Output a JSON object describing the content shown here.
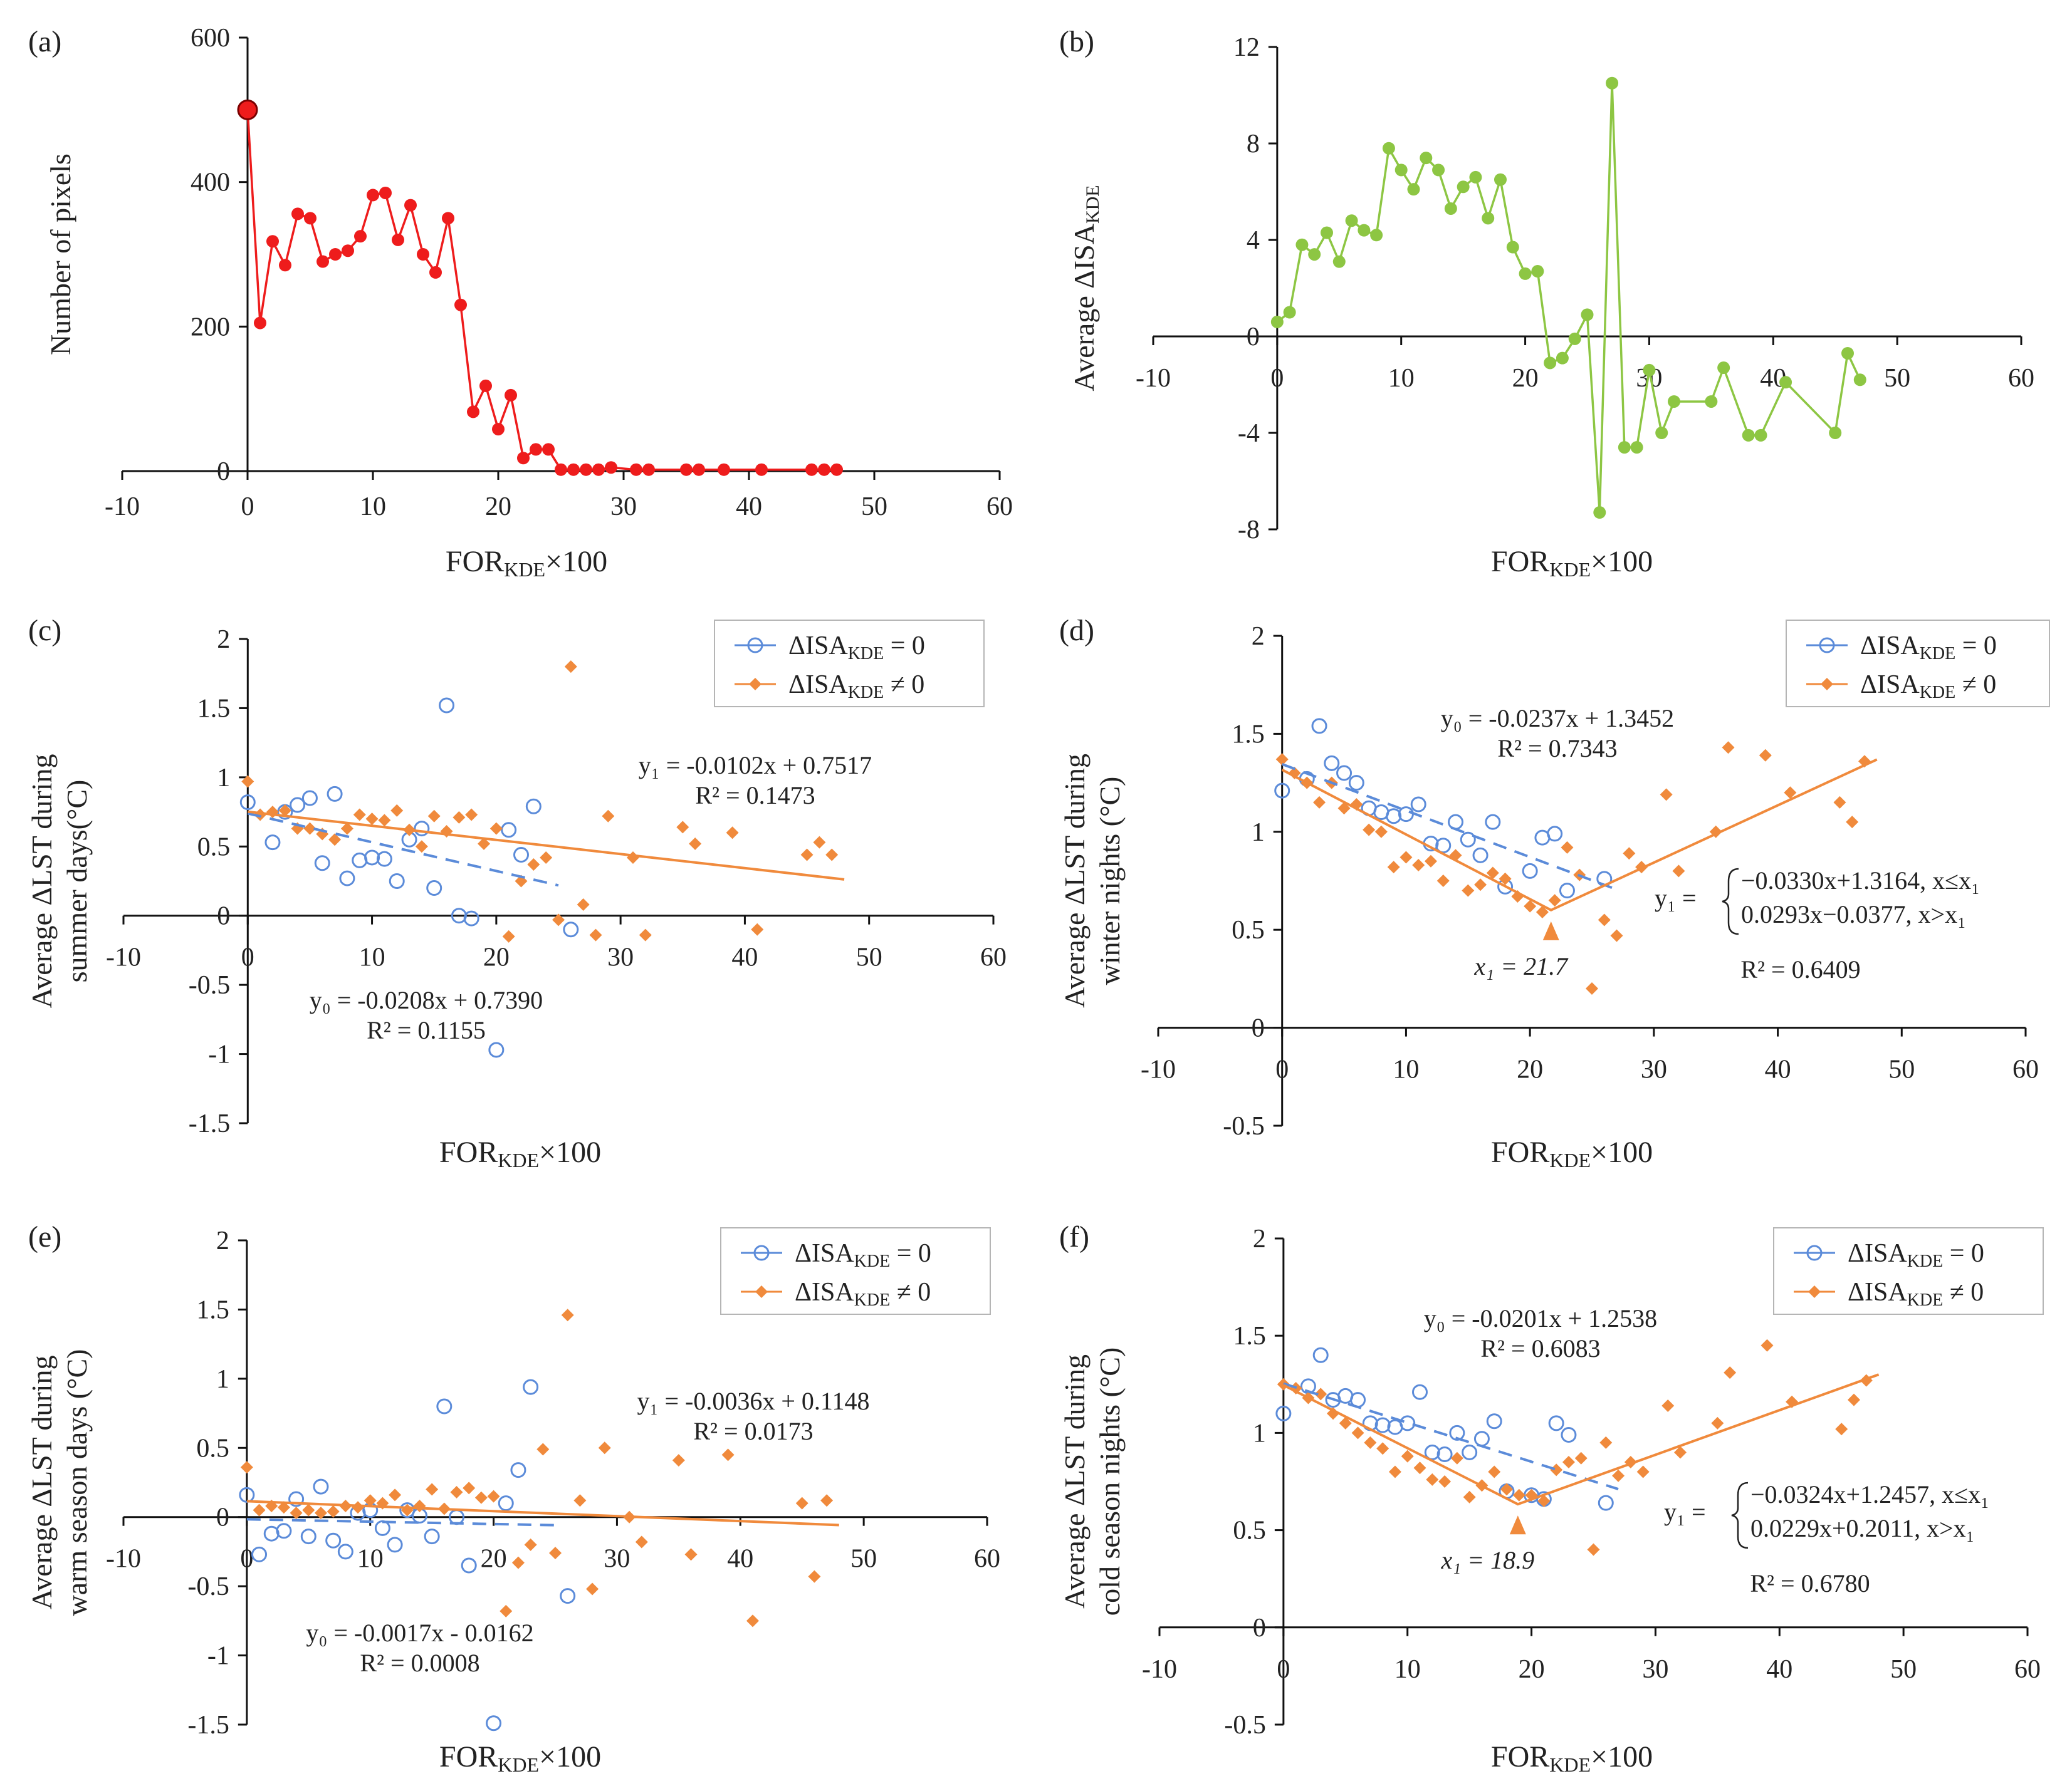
{
  "colors": {
    "panel_a": "#ee1c1c",
    "panel_b": "#8dc643",
    "blue": "#5b8bd9",
    "orange": "#f08a3c",
    "axis": "#111111"
  },
  "chart_data": [
    {
      "id": "a",
      "label": "(a)",
      "type": "line",
      "xlabel": "FORKDE×100",
      "xlabel_main": "FOR",
      "xlabel_sub": "KDE",
      "xlabel_tail": "×100",
      "ylabel": "Number of pixels",
      "xlim": [
        -10,
        60
      ],
      "ylim": [
        0,
        600
      ],
      "xticks": [
        -10,
        0,
        10,
        20,
        30,
        40,
        50,
        60
      ],
      "yticks": [
        0,
        200,
        400,
        600
      ],
      "series": [
        {
          "name": "count",
          "x": [
            0,
            1,
            2,
            3,
            4,
            5,
            6,
            7,
            8,
            9,
            10,
            11,
            12,
            13,
            14,
            15,
            16,
            17,
            18,
            19,
            20,
            21,
            22,
            23,
            24,
            25,
            26,
            27,
            28,
            29,
            31,
            32,
            35,
            36,
            38,
            41,
            45,
            46,
            47
          ],
          "y": [
            500,
            205,
            318,
            285,
            356,
            350,
            290,
            300,
            305,
            325,
            382,
            385,
            320,
            368,
            300,
            275,
            350,
            230,
            82,
            118,
            58,
            105,
            18,
            30,
            30,
            2,
            2,
            2,
            2,
            5,
            2,
            2,
            2,
            2,
            2,
            2,
            2,
            2,
            2
          ]
        }
      ]
    },
    {
      "id": "b",
      "label": "(b)",
      "type": "line",
      "xlabel": "FORKDE×100",
      "xlabel_main": "FOR",
      "xlabel_sub": "KDE",
      "xlabel_tail": "×100",
      "ylabel": "Average ΔISAKDE",
      "ylabel_main": "Average ΔISA",
      "ylabel_sub": "KDE",
      "xlim": [
        -10,
        60
      ],
      "ylim": [
        -8,
        12
      ],
      "xticks": [
        -10,
        0,
        10,
        20,
        30,
        40,
        50,
        60
      ],
      "yticks": [
        -8,
        -4,
        0,
        4,
        8,
        12
      ],
      "series": [
        {
          "name": "avg_delta_isa",
          "x": [
            0,
            1,
            2,
            3,
            4,
            5,
            6,
            7,
            8,
            9,
            10,
            11,
            12,
            13,
            14,
            15,
            16,
            17,
            18,
            19,
            20,
            21,
            22,
            23,
            24,
            25,
            26,
            27,
            28,
            29,
            30,
            31,
            32,
            35,
            36,
            38,
            39,
            41,
            45,
            46,
            47
          ],
          "y": [
            0.6,
            1.0,
            3.8,
            3.4,
            4.3,
            3.1,
            4.8,
            4.4,
            4.2,
            7.8,
            6.9,
            6.1,
            7.4,
            6.9,
            5.3,
            6.2,
            6.6,
            4.9,
            6.5,
            3.7,
            2.6,
            2.7,
            -1.1,
            -0.9,
            -0.1,
            0.9,
            -7.3,
            10.5,
            -4.6,
            -4.6,
            -1.4,
            -4.0,
            -2.7,
            -2.7,
            -1.3,
            -4.1,
            -4.1,
            -1.9,
            -4.0,
            -0.7,
            -1.8
          ]
        }
      ]
    },
    {
      "id": "c",
      "label": "(c)",
      "type": "scatter",
      "xlabel": "FORKDE×100",
      "xlabel_main": "FOR",
      "xlabel_sub": "KDE",
      "xlabel_tail": "×100",
      "ylabel_line1": "Average ΔLST during",
      "ylabel_line2": "summer days(°C)",
      "xlim": [
        -10,
        60
      ],
      "ylim": [
        -1.5,
        2
      ],
      "xticks": [
        -10,
        0,
        10,
        20,
        30,
        40,
        50,
        60
      ],
      "yticks": [
        -1.5,
        -1,
        -0.5,
        0,
        0.5,
        1,
        1.5,
        2
      ],
      "legend": [
        "ΔISAKDE = 0",
        "ΔISAKDE ≠ 0"
      ],
      "legend_main": "ΔISA",
      "legend_sub": "KDE",
      "legend_tail": [
        " = 0",
        " ≠ 0"
      ],
      "series0": {
        "x": [
          0,
          2,
          3,
          4,
          5,
          6,
          7,
          8,
          9,
          10,
          11,
          12,
          13,
          14,
          15,
          16,
          17,
          18,
          20,
          21,
          22,
          23,
          26
        ],
        "y": [
          0.82,
          0.53,
          0.75,
          0.8,
          0.85,
          0.38,
          0.88,
          0.27,
          0.4,
          0.42,
          0.41,
          0.25,
          0.55,
          0.63,
          0.2,
          1.52,
          0.0,
          -0.02,
          -0.97,
          0.62,
          0.44,
          0.79,
          -0.1
        ]
      },
      "series1": {
        "x": [
          0,
          1,
          2,
          3,
          4,
          5,
          6,
          7,
          8,
          9,
          10,
          11,
          12,
          13,
          14,
          15,
          16,
          17,
          18,
          19,
          20,
          21,
          22,
          23,
          24,
          25,
          26,
          27,
          28,
          29,
          31,
          32,
          35,
          36,
          39,
          41,
          45,
          46,
          47
        ],
        "y": [
          0.97,
          0.73,
          0.75,
          0.76,
          0.63,
          0.63,
          0.59,
          0.55,
          0.63,
          0.73,
          0.7,
          0.69,
          0.76,
          0.62,
          0.5,
          0.72,
          0.61,
          0.71,
          0.73,
          0.52,
          0.63,
          -0.15,
          0.25,
          0.37,
          0.42,
          -0.03,
          1.8,
          0.08,
          -0.14,
          0.72,
          0.42,
          -0.14,
          0.64,
          0.52,
          0.6,
          -0.1,
          0.44,
          0.53,
          0.44
        ]
      },
      "fit0": {
        "type": "linear",
        "slope": -0.0208,
        "intercept": 0.739,
        "x_range": [
          0,
          25
        ]
      },
      "fit1": {
        "type": "linear",
        "slope": -0.0102,
        "intercept": 0.7517,
        "x_range": [
          0,
          48
        ]
      },
      "eq0": [
        "y₀ = -0.0208x + 0.7390",
        "R² = 0.1155"
      ],
      "eq1": [
        "y₁ = -0.0102x + 0.7517",
        "R² = 0.1473"
      ]
    },
    {
      "id": "d",
      "label": "(d)",
      "type": "scatter",
      "xlabel": "FORKDE×100",
      "xlabel_main": "FOR",
      "xlabel_sub": "KDE",
      "xlabel_tail": "×100",
      "ylabel_line1": "Average ΔLST during",
      "ylabel_line2": "winter nights (°C)",
      "xlim": [
        -10,
        60
      ],
      "ylim": [
        -0.5,
        2
      ],
      "xticks": [
        -10,
        0,
        10,
        20,
        30,
        40,
        50,
        60
      ],
      "yticks": [
        -0.5,
        0,
        0.5,
        1,
        1.5,
        2
      ],
      "legend": [
        "ΔISAKDE = 0",
        "ΔISAKDE ≠ 0"
      ],
      "legend_main": "ΔISA",
      "legend_sub": "KDE",
      "legend_tail": [
        " = 0",
        " ≠ 0"
      ],
      "series0": {
        "x": [
          0,
          2,
          3,
          4,
          5,
          6,
          7,
          8,
          9,
          10,
          11,
          12,
          13,
          14,
          15,
          16,
          17,
          18,
          20,
          21,
          22,
          23,
          26
        ],
        "y": [
          1.21,
          1.27,
          1.54,
          1.35,
          1.3,
          1.25,
          1.12,
          1.1,
          1.08,
          1.09,
          1.14,
          0.94,
          0.93,
          1.05,
          0.96,
          0.88,
          1.05,
          0.72,
          0.8,
          0.97,
          0.99,
          0.7,
          0.76
        ]
      },
      "series1": {
        "x": [
          0,
          1,
          2,
          3,
          4,
          5,
          6,
          7,
          8,
          9,
          10,
          11,
          12,
          13,
          14,
          15,
          16,
          17,
          18,
          19,
          20,
          21,
          22,
          23,
          24,
          25,
          26,
          27,
          28,
          29,
          31,
          32,
          35,
          36,
          39,
          41,
          45,
          46,
          47
        ],
        "y": [
          1.37,
          1.3,
          1.25,
          1.15,
          1.25,
          1.12,
          1.14,
          1.01,
          1.0,
          0.82,
          0.87,
          0.83,
          0.85,
          0.75,
          0.88,
          0.7,
          0.73,
          0.79,
          0.76,
          0.67,
          0.62,
          0.59,
          0.65,
          0.92,
          0.78,
          0.2,
          0.55,
          0.47,
          0.89,
          0.82,
          1.19,
          0.8,
          1.0,
          1.43,
          1.39,
          1.2,
          1.15,
          1.05,
          1.36
        ]
      },
      "fit0": {
        "type": "linear",
        "slope": -0.0237,
        "intercept": 1.3452,
        "x_range": [
          0,
          27
        ]
      },
      "fit1": {
        "type": "piecewise",
        "breakpoint": 21.7,
        "left": {
          "slope": -0.033,
          "intercept": 1.3164
        },
        "right": {
          "slope": 0.0293,
          "intercept": -0.0377
        },
        "x_range": [
          0,
          48
        ]
      },
      "eq0": [
        "y₀ = -0.0237x + 1.3452",
        "R² = 0.7343"
      ],
      "eq1": [
        "y₁ =",
        "−0.0330x+1.3164, x≤x₁",
        "0.0293x−0.0377, x>x₁",
        "R² = 0.6409"
      ],
      "breakpoint_label": "x₁ = 21.7"
    },
    {
      "id": "e",
      "label": "(e)",
      "type": "scatter",
      "xlabel": "FORKDE×100",
      "xlabel_main": "FOR",
      "xlabel_sub": "KDE",
      "xlabel_tail": "×100",
      "ylabel_line1": "Average ΔLST during",
      "ylabel_line2": "warm season days (°C)",
      "xlim": [
        -10,
        60
      ],
      "ylim": [
        -1.5,
        2
      ],
      "xticks": [
        -10,
        0,
        10,
        20,
        30,
        40,
        50,
        60
      ],
      "yticks": [
        -1.5,
        -1,
        -0.5,
        0,
        0.5,
        1,
        1.5,
        2
      ],
      "legend": [
        "ΔISAKDE = 0",
        "ΔISAKDE ≠ 0"
      ],
      "legend_main": "ΔISA",
      "legend_sub": "KDE",
      "legend_tail": [
        " = 0",
        " ≠ 0"
      ],
      "series0": {
        "x": [
          0,
          1,
          2,
          3,
          4,
          5,
          6,
          7,
          8,
          9,
          10,
          11,
          12,
          13,
          14,
          15,
          16,
          17,
          18,
          20,
          21,
          22,
          23,
          26
        ],
        "y": [
          0.16,
          -0.27,
          -0.12,
          -0.1,
          0.13,
          -0.14,
          0.22,
          -0.17,
          -0.25,
          0.03,
          0.05,
          -0.08,
          -0.2,
          0.05,
          0.01,
          -0.14,
          0.8,
          0.0,
          -0.35,
          -1.49,
          0.1,
          0.34,
          0.94,
          -0.57
        ]
      },
      "series1": {
        "x": [
          0,
          1,
          2,
          3,
          4,
          5,
          6,
          7,
          8,
          9,
          10,
          11,
          12,
          13,
          14,
          15,
          16,
          17,
          18,
          19,
          20,
          21,
          22,
          23,
          24,
          25,
          26,
          27,
          28,
          29,
          31,
          32,
          35,
          36,
          39,
          41,
          45,
          46,
          47
        ],
        "y": [
          0.36,
          0.05,
          0.08,
          0.07,
          0.03,
          0.05,
          0.03,
          0.04,
          0.08,
          0.07,
          0.12,
          0.1,
          0.16,
          0.05,
          0.08,
          0.2,
          0.06,
          0.18,
          0.21,
          0.14,
          0.15,
          -0.68,
          -0.33,
          -0.2,
          0.49,
          -0.26,
          1.46,
          0.12,
          -0.52,
          0.5,
          0.0,
          -0.18,
          0.41,
          -0.27,
          0.45,
          -0.75,
          0.1,
          -0.43,
          0.12
        ]
      },
      "fit0": {
        "type": "linear",
        "slope": -0.0017,
        "intercept": -0.0162,
        "x_range": [
          0,
          25
        ]
      },
      "fit1": {
        "type": "linear",
        "slope": -0.0036,
        "intercept": 0.1148,
        "x_range": [
          0,
          48
        ]
      },
      "eq0": [
        "y₀ = -0.0017x - 0.0162",
        "R² = 0.0008"
      ],
      "eq1": [
        "y₁ = -0.0036x + 0.1148",
        "R² = 0.0173"
      ]
    },
    {
      "id": "f",
      "label": "(f)",
      "type": "scatter",
      "xlabel": "FORKDE×100",
      "xlabel_main": "FOR",
      "xlabel_sub": "KDE",
      "xlabel_tail": "×100",
      "ylabel_line1": "Average ΔLST  during",
      "ylabel_line2": "cold season nights (°C)",
      "xlim": [
        -10,
        60
      ],
      "ylim": [
        -0.5,
        2
      ],
      "xticks": [
        -10,
        0,
        10,
        20,
        30,
        40,
        50,
        60
      ],
      "yticks": [
        -0.5,
        0,
        0.5,
        1,
        1.5,
        2
      ],
      "legend": [
        "ΔISAKDE = 0",
        "ΔISAKDE ≠ 0"
      ],
      "legend_main": "ΔISA",
      "legend_sub": "KDE",
      "legend_tail": [
        " = 0",
        " ≠ 0"
      ],
      "series0": {
        "x": [
          0,
          2,
          3,
          4,
          5,
          6,
          7,
          8,
          9,
          10,
          11,
          12,
          13,
          14,
          15,
          16,
          17,
          18,
          20,
          21,
          22,
          23,
          26
        ],
        "y": [
          1.1,
          1.24,
          1.4,
          1.17,
          1.19,
          1.17,
          1.05,
          1.04,
          1.03,
          1.05,
          1.21,
          0.9,
          0.89,
          1.0,
          0.9,
          0.97,
          1.06,
          0.7,
          0.68,
          0.66,
          1.05,
          0.99,
          0.64
        ]
      },
      "series1": {
        "x": [
          0,
          1,
          2,
          3,
          4,
          5,
          6,
          7,
          8,
          9,
          10,
          11,
          12,
          13,
          14,
          15,
          16,
          17,
          18,
          19,
          20,
          21,
          22,
          23,
          24,
          25,
          26,
          27,
          28,
          29,
          31,
          32,
          35,
          36,
          39,
          41,
          45,
          46,
          47
        ],
        "y": [
          1.25,
          1.23,
          1.18,
          1.2,
          1.1,
          1.05,
          1.0,
          0.95,
          0.92,
          0.8,
          0.88,
          0.82,
          0.76,
          0.75,
          0.87,
          0.67,
          0.73,
          0.8,
          0.71,
          0.68,
          0.68,
          0.65,
          0.81,
          0.85,
          0.87,
          0.4,
          0.95,
          0.78,
          0.85,
          0.8,
          1.14,
          0.9,
          1.05,
          1.31,
          1.45,
          1.16,
          1.02,
          1.17,
          1.27
        ]
      },
      "fit0": {
        "type": "linear",
        "slope": -0.0201,
        "intercept": 1.2538,
        "x_range": [
          0,
          27
        ]
      },
      "fit1": {
        "type": "piecewise",
        "breakpoint": 18.9,
        "left": {
          "slope": -0.0324,
          "intercept": 1.2457
        },
        "right": {
          "slope": 0.0229,
          "intercept": 0.2011
        },
        "x_range": [
          0,
          48
        ]
      },
      "eq0": [
        "y₀ = -0.0201x + 1.2538",
        "R² = 0.6083"
      ],
      "eq1": [
        "y₁ =",
        "−0.0324x+1.2457, x≤x₁",
        "0.0229x+0.2011, x>x₁",
        "R² = 0.6780"
      ],
      "breakpoint_label": "x₁ = 18.9"
    }
  ]
}
